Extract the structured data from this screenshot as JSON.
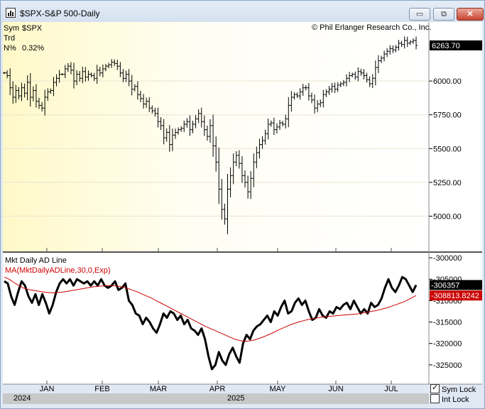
{
  "window": {
    "title": "$SPX-S&P 500-Daily",
    "buttons": {
      "minimize": "▭",
      "restore": "⧉",
      "close": "✕"
    }
  },
  "legend": {
    "sym_label": "Sym",
    "sym_value": "$SPX",
    "trd_label": "Trd",
    "n_label": "N%",
    "n_value": "0.32%"
  },
  "copyright": "© Phil Erlanger Research Co., Inc.",
  "colors": {
    "price_bg": "#fffde0",
    "last_tag": "#000000",
    "ma_line": "#cc0000",
    "ad_line": "#000000"
  },
  "chart_data": [
    {
      "type": "ohlc",
      "name": "S&P 500 Daily",
      "ylim": [
        4750,
        6400
      ],
      "yticks": [
        "6000.00",
        "5750.00",
        "5500.00",
        "5250.00",
        "5000.00"
      ],
      "ytick_values": [
        6000,
        5750,
        5500,
        5250,
        5000
      ],
      "last_value_label": "6263.70",
      "last_value": 6263.7,
      "x_months": [
        "JAN",
        "FEB",
        "MAR",
        "APR",
        "MAY",
        "JUN",
        "JUL"
      ],
      "closes": [
        6060,
        6040,
        5950,
        5880,
        5930,
        5890,
        5950,
        5910,
        5990,
        5880,
        5930,
        5850,
        5820,
        5800,
        5880,
        5920,
        5930,
        5990,
        6020,
        6050,
        6050,
        6090,
        6110,
        6080,
        6000,
        6050,
        6020,
        6070,
        6030,
        6050,
        6040,
        6020,
        6080,
        6060,
        6090,
        6110,
        6120,
        6140,
        6130,
        6110,
        6060,
        6020,
        6050,
        6000,
        5940,
        5960,
        5900,
        5870,
        5830,
        5850,
        5800,
        5780,
        5760,
        5700,
        5670,
        5580,
        5620,
        5530,
        5600,
        5620,
        5640,
        5650,
        5680,
        5700,
        5640,
        5680,
        5720,
        5760,
        5700,
        5640,
        5590,
        5670,
        5520,
        5400,
        5200,
        5050,
        4980,
        5200,
        5300,
        5400,
        5450,
        5390,
        5300,
        5250,
        5180,
        5280,
        5400,
        5470,
        5530,
        5560,
        5610,
        5680,
        5690,
        5640,
        5660,
        5690,
        5680,
        5720,
        5820,
        5880,
        5900,
        5890,
        5920,
        5950,
        5950,
        5890,
        5860,
        5800,
        5830,
        5840,
        5900,
        5920,
        5940,
        5960,
        5940,
        5970,
        5980,
        5990,
        6020,
        6040,
        6050,
        6030,
        6070,
        6060,
        6040,
        6010,
        5980,
        6020,
        6100,
        6150,
        6170,
        6200,
        6220,
        6240,
        6230,
        6250,
        6280,
        6270,
        6300,
        6280,
        6290,
        6300,
        6264
      ]
    },
    {
      "type": "line",
      "title": "Mkt Daily AD Line",
      "series": [
        {
          "name": "Mkt Daily AD Line",
          "color": "#000000",
          "last_label": "-306357",
          "last_value": -306357,
          "values": [
            -305500,
            -306000,
            -309000,
            -311000,
            -308000,
            -305500,
            -306500,
            -309000,
            -310500,
            -308500,
            -311000,
            -308500,
            -310500,
            -313000,
            -311000,
            -308000,
            -306000,
            -305000,
            -306000,
            -305000,
            -306500,
            -305000,
            -305500,
            -306000,
            -305500,
            -306500,
            -305500,
            -306500,
            -305000,
            -306500,
            -307000,
            -306500,
            -305500,
            -307500,
            -307000,
            -306000,
            -310000,
            -311000,
            -313000,
            -313500,
            -315500,
            -314000,
            -315000,
            -316500,
            -317500,
            -315500,
            -313000,
            -314000,
            -312500,
            -313000,
            -314500,
            -313500,
            -315500,
            -314500,
            -316500,
            -317000,
            -318000,
            -316500,
            -319000,
            -323000,
            -326000,
            -325000,
            -322000,
            -324000,
            -325000,
            -322500,
            -321000,
            -323000,
            -324500,
            -320000,
            -318000,
            -319000,
            -317000,
            -316000,
            -315500,
            -314500,
            -313500,
            -315000,
            -312500,
            -313500,
            -311500,
            -310000,
            -313000,
            -312500,
            -310500,
            -309500,
            -311000,
            -310000,
            -312500,
            -314500,
            -314000,
            -312000,
            -313500,
            -314000,
            -312500,
            -313000,
            -311500,
            -312000,
            -311000,
            -310500,
            -312000,
            -310000,
            -311500,
            -313000,
            -312000,
            -313000,
            -310500,
            -311500,
            -311000,
            -309500,
            -307000,
            -305000,
            -307000,
            -308000,
            -306500,
            -304500,
            -305000,
            -306500,
            -308000,
            -306357
          ]
        },
        {
          "name": "MA(MktDailyADLine,30,0,Exp)",
          "color": "#cc0000",
          "last_label": "-308813.8242",
          "last_value": -308813.8242,
          "values": [
            -304500,
            -305000,
            -305800,
            -306500,
            -307100,
            -307400,
            -307600,
            -307800,
            -308000,
            -308100,
            -308200,
            -308100,
            -308000,
            -307800,
            -307600,
            -307400,
            -307200,
            -307000,
            -306800,
            -306700,
            -306600,
            -306500,
            -306500,
            -306600,
            -306800,
            -307100,
            -307500,
            -307900,
            -308400,
            -308900,
            -309400,
            -310000,
            -310600,
            -311200,
            -311800,
            -312400,
            -313000,
            -313600,
            -314200,
            -314800,
            -315400,
            -316000,
            -316500,
            -317000,
            -317500,
            -318000,
            -318500,
            -319000,
            -319300,
            -319500,
            -319400,
            -319200,
            -318800,
            -318400,
            -317900,
            -317400,
            -316800,
            -316300,
            -315800,
            -315400,
            -315000,
            -314700,
            -314400,
            -314200,
            -314000,
            -313800,
            -313700,
            -313600,
            -313500,
            -313400,
            -313300,
            -313200,
            -313100,
            -312900,
            -312700,
            -312500,
            -312300,
            -312000,
            -311700,
            -311300,
            -310900,
            -310500,
            -310000,
            -309400,
            -308813
          ]
        }
      ],
      "ylim": [
        -328500,
        -299500
      ],
      "yticks": [
        "-300000",
        "-305000",
        "-310000",
        "-315000",
        "-320000",
        "-325000"
      ],
      "ytick_values": [
        -300000,
        -305000,
        -310000,
        -315000,
        -320000,
        -325000
      ]
    }
  ],
  "x_axis": {
    "months": [
      "JAN",
      "FEB",
      "MAR",
      "APR",
      "MAY",
      "JUN",
      "JUL"
    ],
    "years": [
      "2024",
      "2025"
    ]
  },
  "controls": {
    "sym_lock": "Sym Lock",
    "int_lock": "Int Lock",
    "sym_lock_checked": true,
    "int_lock_checked": false
  }
}
